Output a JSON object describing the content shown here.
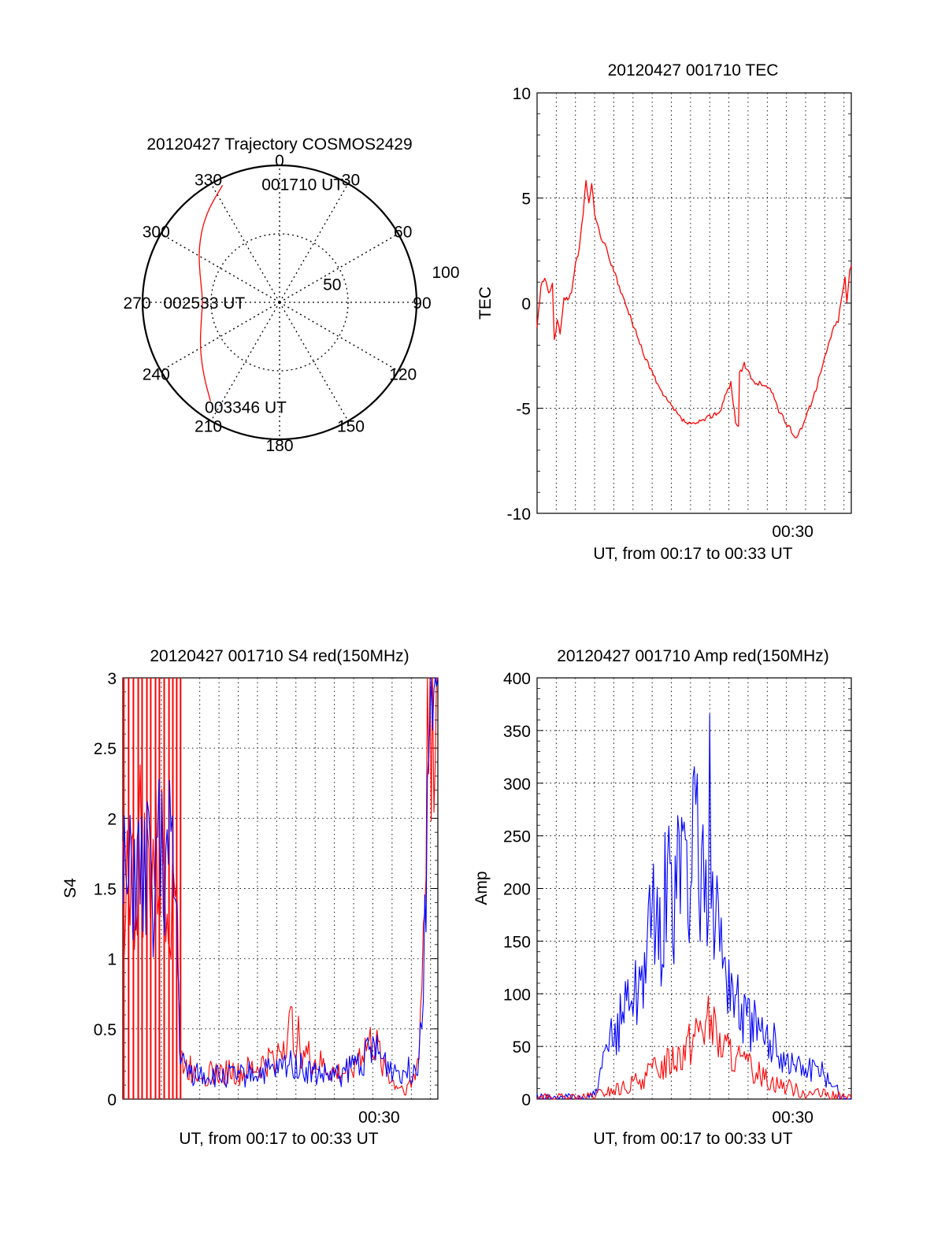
{
  "chart_data": [
    {
      "panel": "trajectory",
      "type": "polar",
      "title": "20120427 Trajectory COSMOS2429",
      "azimuth_labels": [
        "0",
        "30",
        "60",
        "90",
        "120",
        "150",
        "180",
        "210",
        "240",
        "270",
        "300",
        "330"
      ],
      "radial_labels": [
        "50",
        "100"
      ],
      "radial_max": 100,
      "track": [
        {
          "az": 334,
          "r": 95
        },
        {
          "az": 320,
          "r": 84
        },
        {
          "az": 305,
          "r": 72
        },
        {
          "az": 290,
          "r": 62
        },
        {
          "az": 272,
          "r": 56
        },
        {
          "az": 256,
          "r": 59
        },
        {
          "az": 240,
          "r": 67
        },
        {
          "az": 226,
          "r": 77
        },
        {
          "az": 215,
          "r": 88
        }
      ],
      "annotations": [
        {
          "text": "001710 UT",
          "az": 11,
          "r": 88
        },
        {
          "text": "002533 UT",
          "az": 270,
          "r": 55
        },
        {
          "text": "003346 UT",
          "az": 198,
          "r": 80
        }
      ]
    },
    {
      "panel": "tec",
      "type": "line",
      "title": "20120427 001710 TEC",
      "xlabel": "UT, from 00:17 to 00:33 UT",
      "ylabel": "TEC",
      "x_unit": "minutes after 00:17 UT",
      "xlim": [
        0,
        16.38
      ],
      "ylim": [
        -10,
        10
      ],
      "yticks": [
        "10",
        "5",
        "0",
        "-5",
        "-10"
      ],
      "yticks_values": [
        10,
        5,
        0,
        -5,
        -10
      ],
      "xtick_label": "00:30",
      "xtick_value": 13,
      "color": "#ff0000",
      "points": [
        [
          0.0,
          -1.2
        ],
        [
          0.2,
          0.8
        ],
        [
          0.4,
          1.2
        ],
        [
          0.6,
          0.4
        ],
        [
          0.8,
          1.0
        ],
        [
          0.9,
          -1.8
        ],
        [
          1.05,
          -0.8
        ],
        [
          1.2,
          -1.5
        ],
        [
          1.4,
          0.3
        ],
        [
          1.6,
          0.1
        ],
        [
          1.8,
          0.6
        ],
        [
          2.0,
          1.8
        ],
        [
          2.2,
          2.6
        ],
        [
          2.4,
          4.2
        ],
        [
          2.55,
          5.9
        ],
        [
          2.7,
          4.8
        ],
        [
          2.85,
          5.6
        ],
        [
          3.0,
          4.3
        ],
        [
          3.3,
          3.2
        ],
        [
          3.6,
          2.6
        ],
        [
          4.0,
          1.5
        ],
        [
          4.5,
          0.2
        ],
        [
          5.0,
          -1.0
        ],
        [
          5.5,
          -2.3
        ],
        [
          6.0,
          -3.3
        ],
        [
          6.5,
          -4.3
        ],
        [
          7.0,
          -4.9
        ],
        [
          7.5,
          -5.5
        ],
        [
          8.0,
          -5.8
        ],
        [
          8.4,
          -5.7
        ],
        [
          8.8,
          -5.5
        ],
        [
          9.2,
          -5.3
        ],
        [
          9.6,
          -5.1
        ],
        [
          9.8,
          -4.4
        ],
        [
          10.1,
          -3.8
        ],
        [
          10.35,
          -5.6
        ],
        [
          10.5,
          -5.9
        ],
        [
          10.55,
          -3.4
        ],
        [
          10.8,
          -2.9
        ],
        [
          11.0,
          -3.3
        ],
        [
          11.3,
          -3.8
        ],
        [
          11.6,
          -3.8
        ],
        [
          12.0,
          -4.0
        ],
        [
          12.3,
          -4.3
        ],
        [
          12.6,
          -5.1
        ],
        [
          12.9,
          -5.6
        ],
        [
          13.2,
          -6.0
        ],
        [
          13.45,
          -6.4
        ],
        [
          13.8,
          -5.9
        ],
        [
          14.2,
          -5.0
        ],
        [
          14.6,
          -3.9
        ],
        [
          15.0,
          -2.6
        ],
        [
          15.4,
          -1.3
        ],
        [
          15.7,
          -0.8
        ],
        [
          15.9,
          0.4
        ],
        [
          16.05,
          1.2
        ],
        [
          16.15,
          0.0
        ],
        [
          16.3,
          1.6
        ],
        [
          16.38,
          1.8
        ]
      ]
    },
    {
      "panel": "s4",
      "type": "line",
      "title": "20120427 001710 S4 red(150MHz)",
      "xlabel": "UT, from 00:17 to 00:33 UT",
      "ylabel": "S4",
      "x_unit": "minutes after 00:17 UT",
      "xlim": [
        0,
        16.38
      ],
      "ylim": [
        0,
        3
      ],
      "yticks": [
        "3",
        "2.5",
        "2",
        "1.5",
        "1",
        "0.5",
        "0"
      ],
      "yticks_values": [
        3,
        2.5,
        2,
        1.5,
        1,
        0.5,
        0
      ],
      "xtick_label": "00:30",
      "xtick_value": 13,
      "series": [
        {
          "color": "#ff0000",
          "points": [
            [
              0.0,
              1.5
            ],
            [
              0.3,
              1.7
            ],
            [
              0.6,
              1.4
            ],
            [
              0.9,
              1.8
            ],
            [
              1.2,
              1.5
            ],
            [
              1.5,
              1.7
            ],
            [
              1.8,
              1.6
            ],
            [
              2.1,
              1.7
            ],
            [
              2.5,
              1.5
            ],
            [
              2.8,
              1.8
            ],
            [
              2.9,
              0.8
            ],
            [
              3.0,
              0.3
            ],
            [
              3.3,
              0.22
            ],
            [
              4.0,
              0.2
            ],
            [
              4.5,
              0.18
            ],
            [
              5.0,
              0.18
            ],
            [
              5.6,
              0.2
            ],
            [
              6.0,
              0.17
            ],
            [
              6.5,
              0.2
            ],
            [
              7.0,
              0.22
            ],
            [
              7.5,
              0.26
            ],
            [
              8.0,
              0.3
            ],
            [
              8.5,
              0.45
            ],
            [
              8.8,
              0.5
            ],
            [
              9.2,
              0.4
            ],
            [
              9.6,
              0.3
            ],
            [
              10.0,
              0.26
            ],
            [
              10.5,
              0.22
            ],
            [
              11.0,
              0.18
            ],
            [
              11.5,
              0.18
            ],
            [
              12.0,
              0.26
            ],
            [
              12.6,
              0.36
            ],
            [
              13.0,
              0.4
            ],
            [
              13.5,
              0.28
            ],
            [
              14.0,
              0.12
            ],
            [
              14.5,
              0.08
            ],
            [
              15.0,
              0.1
            ],
            [
              15.4,
              0.3
            ],
            [
              15.7,
              1.5
            ],
            [
              15.9,
              3.0
            ],
            [
              16.38,
              3.0
            ]
          ],
          "vertical_spikes_x": [
            0.05,
            0.3,
            0.55,
            0.8,
            1.0,
            1.25,
            1.45,
            1.7,
            1.9,
            2.15,
            2.4,
            2.6,
            2.8,
            3.0
          ]
        },
        {
          "color": "#0000ff",
          "points": [
            [
              0.0,
              1.6
            ],
            [
              0.3,
              1.4
            ],
            [
              0.6,
              1.7
            ],
            [
              0.9,
              1.5
            ],
            [
              1.2,
              1.6
            ],
            [
              1.5,
              1.5
            ],
            [
              1.8,
              1.8
            ],
            [
              2.1,
              1.6
            ],
            [
              2.5,
              1.7
            ],
            [
              2.8,
              1.3
            ],
            [
              2.9,
              0.7
            ],
            [
              3.0,
              0.28
            ],
            [
              3.3,
              0.2
            ],
            [
              4.0,
              0.18
            ],
            [
              4.5,
              0.17
            ],
            [
              5.0,
              0.16
            ],
            [
              5.6,
              0.17
            ],
            [
              6.0,
              0.16
            ],
            [
              6.5,
              0.18
            ],
            [
              7.0,
              0.19
            ],
            [
              7.5,
              0.2
            ],
            [
              8.0,
              0.2
            ],
            [
              8.5,
              0.25
            ],
            [
              8.8,
              0.27
            ],
            [
              9.2,
              0.23
            ],
            [
              9.6,
              0.2
            ],
            [
              10.0,
              0.18
            ],
            [
              10.5,
              0.17
            ],
            [
              11.0,
              0.16
            ],
            [
              11.5,
              0.18
            ],
            [
              12.0,
              0.25
            ],
            [
              12.6,
              0.3
            ],
            [
              13.0,
              0.35
            ],
            [
              13.5,
              0.28
            ],
            [
              14.0,
              0.22
            ],
            [
              14.5,
              0.2
            ],
            [
              15.0,
              0.2
            ],
            [
              15.4,
              0.3
            ],
            [
              15.7,
              1.2
            ],
            [
              15.9,
              3.0
            ],
            [
              16.38,
              3.0
            ]
          ]
        }
      ]
    },
    {
      "panel": "amp",
      "type": "line",
      "title": "20120427 001710 Amp red(150MHz)",
      "xlabel": "UT, from 00:17 to 00:33 UT",
      "ylabel": "Amp",
      "x_unit": "minutes after 00:17 UT",
      "xlim": [
        0,
        16.38
      ],
      "ylim": [
        0,
        400
      ],
      "yticks": [
        "400",
        "350",
        "300",
        "250",
        "200",
        "150",
        "100",
        "50",
        "0"
      ],
      "yticks_values": [
        400,
        350,
        300,
        250,
        200,
        150,
        100,
        50,
        0
      ],
      "xtick_label": "00:30",
      "xtick_value": 13,
      "series": [
        {
          "color": "#0000ff",
          "points": [
            [
              0.0,
              1
            ],
            [
              1.5,
              1
            ],
            [
              2.5,
              1
            ],
            [
              3.0,
              4
            ],
            [
              3.3,
              20
            ],
            [
              3.6,
              45
            ],
            [
              4.0,
              60
            ],
            [
              4.4,
              80
            ],
            [
              4.8,
              110
            ],
            [
              5.2,
              100
            ],
            [
              5.6,
              140
            ],
            [
              6.0,
              170
            ],
            [
              6.4,
              150
            ],
            [
              6.8,
              220
            ],
            [
              7.2,
              170
            ],
            [
              7.6,
              250
            ],
            [
              8.0,
              200
            ],
            [
              8.2,
              300
            ],
            [
              8.5,
              220
            ],
            [
              8.8,
              170
            ],
            [
              9.0,
              280
            ],
            [
              9.3,
              180
            ],
            [
              9.6,
              150
            ],
            [
              10.0,
              120
            ],
            [
              10.4,
              95
            ],
            [
              10.8,
              80
            ],
            [
              11.2,
              70
            ],
            [
              11.6,
              60
            ],
            [
              12.0,
              55
            ],
            [
              12.5,
              50
            ],
            [
              13.0,
              38
            ],
            [
              13.5,
              32
            ],
            [
              14.0,
              30
            ],
            [
              14.5,
              28
            ],
            [
              15.0,
              22
            ],
            [
              15.5,
              15
            ],
            [
              15.8,
              2
            ],
            [
              16.38,
              1
            ]
          ]
        },
        {
          "color": "#ff0000",
          "points": [
            [
              0.0,
              1
            ],
            [
              2.5,
              1
            ],
            [
              3.0,
              3
            ],
            [
              3.5,
              6
            ],
            [
              4.0,
              8
            ],
            [
              4.5,
              10
            ],
            [
              5.0,
              14
            ],
            [
              5.5,
              20
            ],
            [
              6.0,
              26
            ],
            [
              6.5,
              32
            ],
            [
              7.0,
              38
            ],
            [
              7.5,
              45
            ],
            [
              8.0,
              55
            ],
            [
              8.5,
              70
            ],
            [
              9.0,
              75
            ],
            [
              9.3,
              60
            ],
            [
              9.6,
              50
            ],
            [
              10.0,
              45
            ],
            [
              10.3,
              40
            ],
            [
              10.6,
              35
            ],
            [
              11.0,
              30
            ],
            [
              11.5,
              25
            ],
            [
              12.0,
              20
            ],
            [
              12.5,
              15
            ],
            [
              13.0,
              12
            ],
            [
              13.5,
              9
            ],
            [
              14.0,
              6
            ],
            [
              14.5,
              5
            ],
            [
              15.0,
              4
            ],
            [
              15.5,
              3
            ],
            [
              16.38,
              1
            ]
          ]
        }
      ]
    }
  ]
}
